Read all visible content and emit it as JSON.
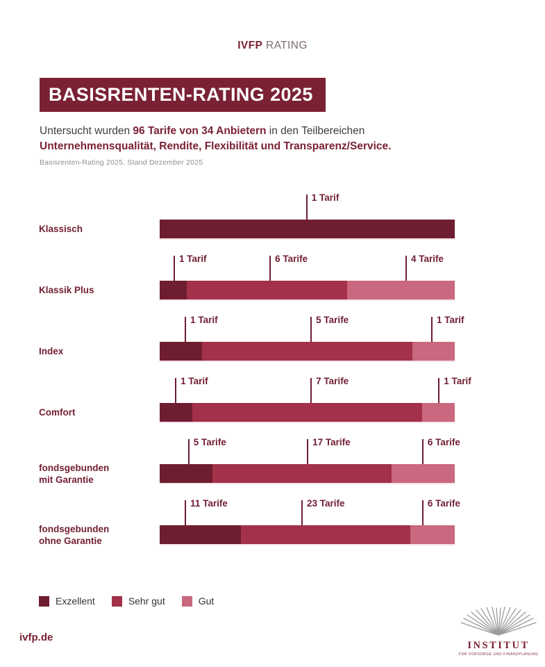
{
  "brand": {
    "bold": "IVFP",
    "regular": " RATING"
  },
  "title": "BASISRENTEN-RATING 2025",
  "subtitle": {
    "part1": "Untersucht wurden ",
    "highlight1": "96 Tarife von 34 Anbietern",
    "part2": " in den Teilbereichen",
    "line2": "Unternehmensqualität, Rendite, Flexibilität und Transparenz/Service."
  },
  "note": "Basisrenten-Rating 2025. Stand Dezember 2025",
  "colors": {
    "ratings": {
      "Exzellent": "#6f1d30",
      "Sehr gut": "#a23149",
      "Gut": "#c9687e"
    },
    "accent": "#7a2134",
    "title_bg": "#7a2134",
    "tick": "#6f1d30",
    "body_text": "#3d3d3d",
    "note_text": "#8f8f8f",
    "logo_gray": "#9a9a9a"
  },
  "legend": {
    "items": [
      {
        "label": "Exzellent",
        "color": "#6f1d30"
      },
      {
        "label": "Sehr gut",
        "color": "#a23149"
      },
      {
        "label": "Gut",
        "color": "#c9687e"
      }
    ]
  },
  "chart_data": {
    "type": "bar",
    "orientation": "horizontal-stacked",
    "title": "BASISRENTEN-RATING 2025",
    "legend": [
      "Exzellent",
      "Sehr gut",
      "Gut"
    ],
    "legend_position": "bottom-left",
    "unit_singular": "Tarif",
    "unit_plural": "Tarife",
    "categories": [
      "Klassisch",
      "Klassik Plus",
      "Index",
      "Comfort",
      "fondsgebunden mit Garantie",
      "fondsgebunden ohne Garantie"
    ],
    "rows": [
      {
        "label_lines": [
          "Klassisch"
        ],
        "total": 1,
        "segments": [
          {
            "rating": "Exzellent",
            "count": 1,
            "annotation": "1 Tarif",
            "tick_pct": 49.6
          }
        ]
      },
      {
        "label_lines": [
          "Klassik Plus"
        ],
        "total": 11,
        "segments": [
          {
            "rating": "Exzellent",
            "count": 1,
            "annotation": "1 Tarif",
            "tick_pct": 4.7
          },
          {
            "rating": "Sehr gut",
            "count": 6,
            "annotation": "6 Tarife",
            "tick_pct": 37.2
          },
          {
            "rating": "Gut",
            "count": 4,
            "annotation": "4 Tarife",
            "tick_pct": 83.3
          }
        ]
      },
      {
        "label_lines": [
          "Index"
        ],
        "total": 7,
        "segments": [
          {
            "rating": "Exzellent",
            "count": 1,
            "annotation": "1 Tarif",
            "tick_pct": 8.5
          },
          {
            "rating": "Sehr gut",
            "count": 5,
            "annotation": "5 Tarife",
            "tick_pct": 51.1
          },
          {
            "rating": "Gut",
            "count": 1,
            "annotation": "1 Tarif",
            "tick_pct": 92.0
          }
        ]
      },
      {
        "label_lines": [
          "Comfort"
        ],
        "total": 9,
        "segments": [
          {
            "rating": "Exzellent",
            "count": 1,
            "annotation": "1 Tarif",
            "tick_pct": 5.2
          },
          {
            "rating": "Sehr gut",
            "count": 7,
            "annotation": "7 Tarife",
            "tick_pct": 51.1
          },
          {
            "rating": "Gut",
            "count": 1,
            "annotation": "1 Tarif",
            "tick_pct": 94.4
          }
        ]
      },
      {
        "label_lines": [
          "fondsgebunden",
          "mit Garantie"
        ],
        "total": 28,
        "segments": [
          {
            "rating": "Exzellent",
            "count": 5,
            "annotation": "5 Tarife",
            "tick_pct": 9.6
          },
          {
            "rating": "Sehr gut",
            "count": 17,
            "annotation": "17 Tarife",
            "tick_pct": 49.9
          },
          {
            "rating": "Gut",
            "count": 6,
            "annotation": "6 Tarife",
            "tick_pct": 88.9
          }
        ]
      },
      {
        "label_lines": [
          "fondsgebunden",
          "ohne Garantie"
        ],
        "total": 40,
        "segments": [
          {
            "rating": "Exzellent",
            "count": 11,
            "annotation": "11 Tarife",
            "tick_pct": 8.5
          },
          {
            "rating": "Sehr gut",
            "count": 23,
            "annotation": "23 Tarife",
            "tick_pct": 48.0
          },
          {
            "rating": "Gut",
            "count": 6,
            "annotation": "6 Tarife",
            "tick_pct": 88.9
          }
        ]
      }
    ]
  },
  "footer": {
    "website": "ivfp.de",
    "logo_title": "INSTITUT",
    "logo_subtitle": "FÜR VORSORGE UND FINANZPLANUNG"
  }
}
